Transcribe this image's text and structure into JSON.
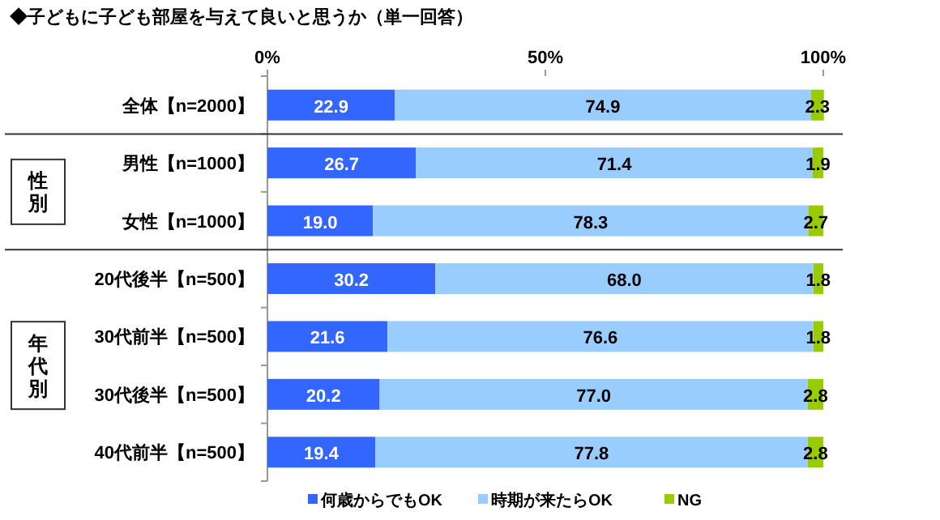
{
  "chart_data": {
    "type": "bar",
    "orientation": "horizontal",
    "stacked": true,
    "legend": "bottom",
    "grid": false,
    "title": "◆子どもに子ども部屋を与えて良いと思うか（単一回答）",
    "categories": [
      "全体【n=2000】",
      "男性【n=1000】",
      "女性【n=1000】",
      "20代後半【n=500】",
      "30代前半【n=500】",
      "30代後半【n=500】",
      "40代前半【n=500】"
    ],
    "xlim": [
      0,
      100
    ],
    "xticks": [
      {
        "value": 0,
        "label": "0%"
      },
      {
        "value": 50,
        "label": "50%"
      },
      {
        "value": 100,
        "label": "100%"
      }
    ],
    "series": [
      {
        "name": "何歳からでもOK",
        "color": "#3366ff",
        "values": [
          22.9,
          26.7,
          19.0,
          30.2,
          21.6,
          20.2,
          19.4
        ],
        "value_labels": [
          "22.9",
          "26.7",
          "19.0",
          "30.2",
          "21.6",
          "20.2",
          "19.4"
        ]
      },
      {
        "name": "時期が来たらOK",
        "color": "#99ccff",
        "values": [
          74.9,
          71.4,
          78.3,
          68.0,
          76.6,
          77.0,
          77.8
        ],
        "value_labels": [
          "74.9",
          "71.4",
          "78.3",
          "68.0",
          "76.6",
          "77.0",
          "77.8"
        ]
      },
      {
        "name": "NG",
        "color": "#99cc00",
        "values": [
          2.3,
          1.9,
          2.7,
          1.8,
          1.8,
          2.8,
          2.8
        ],
        "value_labels": [
          "2.3",
          "1.9",
          "2.7",
          "1.8",
          "1.8",
          "2.8",
          "2.8"
        ]
      }
    ],
    "annotations": [
      "性別",
      "年代別"
    ]
  }
}
